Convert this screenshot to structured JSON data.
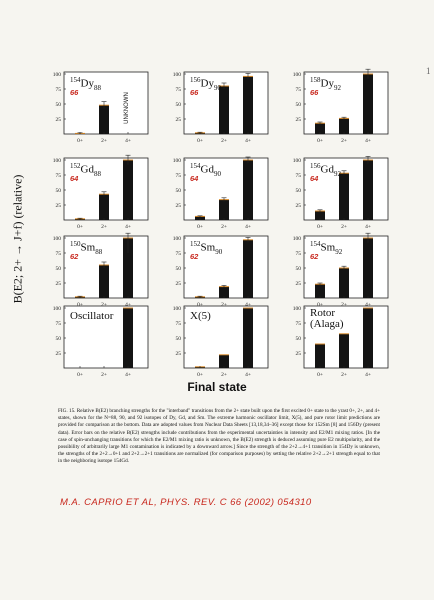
{
  "figure": {
    "y_axis_label": "B(E2; 2+ → J+f) (relative)",
    "x_axis_label": "Final state",
    "caption": "FIG. 15. Relative B(E2) branching strengths for the \"interband\" transitions from the 2+ state built upon the first excited 0+ state to the yrast 0+, 2+, and 4+ states, shown for the N=88, 90, and 92 isotopes of Dy, Gd, and Sm. The extreme harmonic oscillator limit, X(5), and pure rotor limit predictions are provided for comparison at the bottom. Data are adopted values from Nuclear Data Sheets [13,18,34–36] except those for 152Sm [8] and 156Dy (present data). Error bars on the relative B(E2) strengths include contributions from the experimental uncertainties in intensity and E2/M1 mixing ratios. [In the case of spin-unchanging transitions for which the E2/M1 mixing ratio is unknown, the B(E2) strength is deduced assuming pure E2 multipolarity, and the possibility of arbitrarily large M1 contamination is indicated by a downward arrow.] Since the strength of the 2+2→4+1 transition in 154Dy is unknown, the strengths of the 2+2→0+1 and 2+2→2+1 transitions are normalized (for comparison purposes) by setting the relative 2+2→2+1 strength equal to that in the neighboring isotope 154Gd.",
    "handwritten_note": "M.A. CAPRIO ET AL, PHYS. REV. C 66 (2002) 054310",
    "page_mark": "1"
  },
  "chart_data": [
    {
      "type": "bar",
      "element": "Dy",
      "mass": "154",
      "neutrons": "88",
      "z": "66",
      "categories": [
        "0+",
        "2+",
        "4+"
      ],
      "values": [
        1,
        48,
        null
      ],
      "errors": [
        1,
        6,
        null
      ],
      "unknown_label": "UNKNOWN",
      "yticks": [
        25,
        50,
        75,
        100
      ],
      "ylim": [
        0,
        100
      ]
    },
    {
      "type": "bar",
      "element": "Dy",
      "mass": "156",
      "neutrons": "90",
      "z": "66",
      "categories": [
        "0+",
        "2+",
        "4+"
      ],
      "values": [
        2,
        80,
        96
      ],
      "errors": [
        1,
        5,
        5
      ],
      "yticks": [
        25,
        50,
        75,
        100
      ],
      "ylim": [
        0,
        100
      ]
    },
    {
      "type": "bar",
      "element": "Dy",
      "mass": "158",
      "neutrons": "92",
      "z": "66",
      "categories": [
        "0+",
        "2+",
        "4+"
      ],
      "values": [
        18,
        26,
        100
      ],
      "errors": [
        2,
        2,
        8
      ],
      "yticks": [
        25,
        50,
        75,
        100
      ],
      "ylim": [
        0,
        100
      ]
    },
    {
      "type": "bar",
      "element": "Gd",
      "mass": "152",
      "neutrons": "88",
      "z": "64",
      "categories": [
        "0+",
        "2+",
        "4+"
      ],
      "values": [
        2,
        43,
        100
      ],
      "errors": [
        1,
        4,
        8
      ],
      "yticks": [
        25,
        50,
        75,
        100
      ],
      "ylim": [
        0,
        100
      ]
    },
    {
      "type": "bar",
      "element": "Gd",
      "mass": "154",
      "neutrons": "90",
      "z": "64",
      "categories": [
        "0+",
        "2+",
        "4+"
      ],
      "values": [
        6,
        34,
        100
      ],
      "errors": [
        1,
        3,
        5
      ],
      "yticks": [
        25,
        50,
        75,
        100
      ],
      "ylim": [
        0,
        100
      ]
    },
    {
      "type": "bar",
      "element": "Gd",
      "mass": "156",
      "neutrons": "92",
      "z": "64",
      "categories": [
        "0+",
        "2+",
        "4+"
      ],
      "values": [
        15,
        78,
        100
      ],
      "errors": [
        2,
        4,
        6
      ],
      "yticks": [
        25,
        50,
        75,
        100
      ],
      "ylim": [
        0,
        100
      ]
    },
    {
      "type": "bar",
      "element": "Sm",
      "mass": "150",
      "neutrons": "88",
      "z": "62",
      "categories": [
        "0+",
        "2+",
        "4+"
      ],
      "values": [
        2,
        55,
        100
      ],
      "errors": [
        1,
        5,
        25
      ],
      "yticks": [
        25,
        50,
        75,
        100
      ],
      "ylim": [
        0,
        100
      ]
    },
    {
      "type": "bar",
      "element": "Sm",
      "mass": "152",
      "neutrons": "90",
      "z": "62",
      "categories": [
        "0+",
        "2+",
        "4+"
      ],
      "values": [
        2,
        19,
        97
      ],
      "errors": [
        1,
        2,
        4
      ],
      "yticks": [
        25,
        50,
        75,
        100
      ],
      "ylim": [
        0,
        100
      ]
    },
    {
      "type": "bar",
      "element": "Sm",
      "mass": "154",
      "neutrons": "92",
      "z": "62",
      "categories": [
        "0+",
        "2+",
        "4+"
      ],
      "values": [
        23,
        50,
        100
      ],
      "errors": [
        2,
        3,
        8
      ],
      "yticks": [
        25,
        50,
        75,
        100
      ],
      "ylim": [
        0,
        100
      ]
    },
    {
      "type": "bar",
      "label": "Oscillator",
      "categories": [
        "0+",
        "2+",
        "4+"
      ],
      "values": [
        0,
        0,
        100
      ],
      "yticks": [
        25,
        50,
        75,
        100
      ],
      "ylim": [
        0,
        100
      ]
    },
    {
      "type": "bar",
      "label": "X(5)",
      "categories": [
        "0+",
        "2+",
        "4+"
      ],
      "values": [
        2,
        22,
        100
      ],
      "yticks": [
        25,
        50,
        75,
        100
      ],
      "ylim": [
        0,
        100
      ]
    },
    {
      "type": "bar",
      "label": "Rotor (Alaga)",
      "categories": [
        "0+",
        "2+",
        "4+"
      ],
      "values": [
        40,
        57,
        100
      ],
      "yticks": [
        25,
        50,
        75,
        100
      ],
      "ylim": [
        0,
        100
      ]
    }
  ]
}
